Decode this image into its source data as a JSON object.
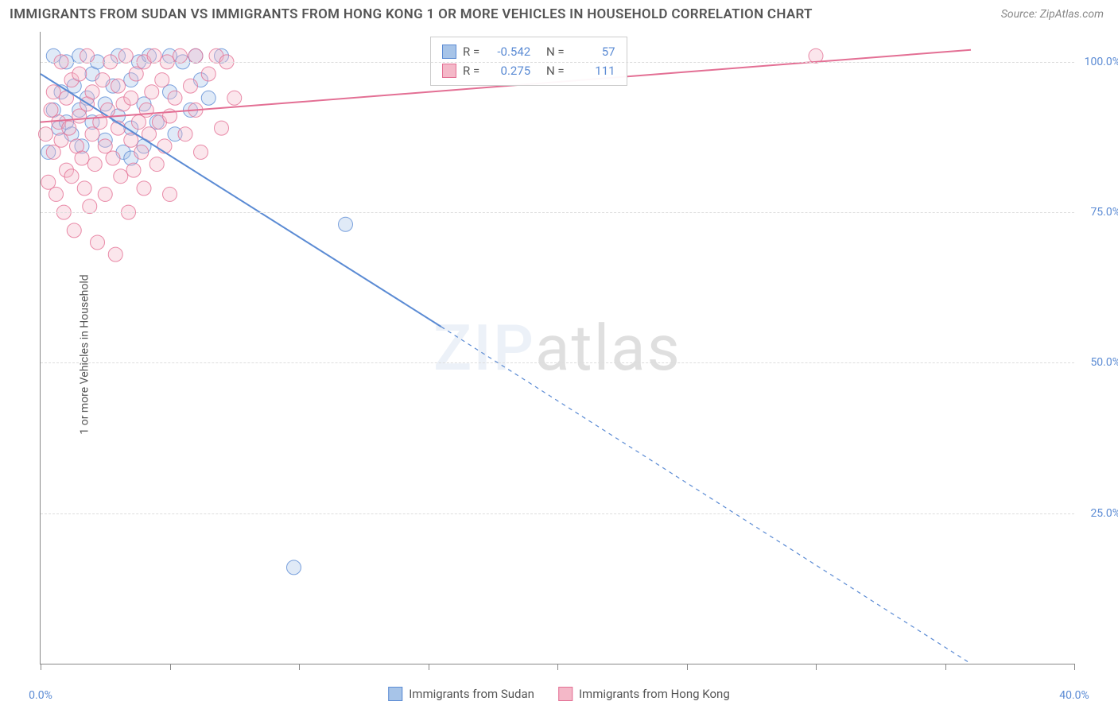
{
  "title": "IMMIGRANTS FROM SUDAN VS IMMIGRANTS FROM HONG KONG 1 OR MORE VEHICLES IN HOUSEHOLD CORRELATION CHART",
  "source": "Source: ZipAtlas.com",
  "ylabel": "1 or more Vehicles in Household",
  "watermark_a": "ZIP",
  "watermark_b": "atlas",
  "chart": {
    "type": "scatter",
    "xlim": [
      0,
      40
    ],
    "ylim": [
      0,
      105
    ],
    "x_tick_positions": [
      0,
      5,
      10,
      15,
      20,
      25,
      30,
      35,
      40
    ],
    "x_tick_labels": {
      "0": "0.0%",
      "40": "40.0%"
    },
    "y_gridlines": [
      25,
      50,
      75,
      100
    ],
    "y_tick_labels": {
      "25": "25.0%",
      "50": "50.0%",
      "75": "75.0%",
      "100": "100.0%"
    },
    "background_color": "#ffffff",
    "grid_color": "#dddddd",
    "axis_color": "#888888",
    "tick_label_color": "#5b8bd4",
    "marker_radius": 9,
    "marker_opacity": 0.35,
    "marker_stroke_opacity": 0.8,
    "line_width": 2,
    "dash_pattern": "5,5",
    "series": [
      {
        "name": "Immigrants from Sudan",
        "color_fill": "#a7c4e8",
        "color_stroke": "#5b8bd4",
        "R": "-0.542",
        "N": "57",
        "trend": {
          "x1": 0,
          "y1": 98,
          "x2_solid": 15.5,
          "y2_solid": 56,
          "x2": 36,
          "y2": 0
        },
        "points": [
          [
            0.3,
            85
          ],
          [
            0.5,
            92
          ],
          [
            0.5,
            101
          ],
          [
            0.7,
            89
          ],
          [
            0.8,
            95
          ],
          [
            1.0,
            100
          ],
          [
            1.0,
            90
          ],
          [
            1.2,
            88
          ],
          [
            1.3,
            96
          ],
          [
            1.5,
            92
          ],
          [
            1.5,
            101
          ],
          [
            1.6,
            86
          ],
          [
            1.8,
            94
          ],
          [
            2.0,
            98
          ],
          [
            2.0,
            90
          ],
          [
            2.2,
            100
          ],
          [
            2.5,
            93
          ],
          [
            2.5,
            87
          ],
          [
            2.8,
            96
          ],
          [
            3.0,
            101
          ],
          [
            3.0,
            91
          ],
          [
            3.2,
            85
          ],
          [
            3.5,
            89
          ],
          [
            3.5,
            97
          ],
          [
            3.8,
            100
          ],
          [
            4.0,
            93
          ],
          [
            4.0,
            86
          ],
          [
            4.2,
            101
          ],
          [
            4.5,
            90
          ],
          [
            5.0,
            95
          ],
          [
            5.0,
            101
          ],
          [
            5.2,
            88
          ],
          [
            5.5,
            100
          ],
          [
            5.8,
            92
          ],
          [
            6.0,
            101
          ],
          [
            6.2,
            97
          ],
          [
            6.5,
            94
          ],
          [
            7.0,
            101
          ],
          [
            11.8,
            73
          ],
          [
            9.8,
            16
          ],
          [
            3.5,
            84
          ]
        ]
      },
      {
        "name": "Immigrants from Hong Kong",
        "color_fill": "#f4b8c8",
        "color_stroke": "#e36f94",
        "R": "0.275",
        "N": "111",
        "trend": {
          "x1": 0,
          "y1": 90,
          "x2_solid": 36,
          "y2_solid": 102,
          "x2": 36,
          "y2": 102
        },
        "points": [
          [
            0.2,
            88
          ],
          [
            0.3,
            80
          ],
          [
            0.4,
            92
          ],
          [
            0.5,
            85
          ],
          [
            0.5,
            95
          ],
          [
            0.6,
            78
          ],
          [
            0.7,
            90
          ],
          [
            0.8,
            100
          ],
          [
            0.8,
            87
          ],
          [
            0.9,
            75
          ],
          [
            1.0,
            94
          ],
          [
            1.0,
            82
          ],
          [
            1.1,
            89
          ],
          [
            1.2,
            97
          ],
          [
            1.2,
            81
          ],
          [
            1.3,
            72
          ],
          [
            1.4,
            86
          ],
          [
            1.5,
            91
          ],
          [
            1.5,
            98
          ],
          [
            1.6,
            84
          ],
          [
            1.7,
            79
          ],
          [
            1.8,
            93
          ],
          [
            1.8,
            101
          ],
          [
            1.9,
            76
          ],
          [
            2.0,
            88
          ],
          [
            2.0,
            95
          ],
          [
            2.1,
            83
          ],
          [
            2.2,
            70
          ],
          [
            2.3,
            90
          ],
          [
            2.4,
            97
          ],
          [
            2.5,
            86
          ],
          [
            2.5,
            78
          ],
          [
            2.6,
            92
          ],
          [
            2.7,
            100
          ],
          [
            2.8,
            84
          ],
          [
            2.9,
            68
          ],
          [
            3.0,
            89
          ],
          [
            3.0,
            96
          ],
          [
            3.1,
            81
          ],
          [
            3.2,
            93
          ],
          [
            3.3,
            101
          ],
          [
            3.4,
            75
          ],
          [
            3.5,
            87
          ],
          [
            3.5,
            94
          ],
          [
            3.6,
            82
          ],
          [
            3.7,
            98
          ],
          [
            3.8,
            90
          ],
          [
            3.9,
            85
          ],
          [
            4.0,
            100
          ],
          [
            4.0,
            79
          ],
          [
            4.1,
            92
          ],
          [
            4.2,
            88
          ],
          [
            4.3,
            95
          ],
          [
            4.4,
            101
          ],
          [
            4.5,
            83
          ],
          [
            4.6,
            90
          ],
          [
            4.7,
            97
          ],
          [
            4.8,
            86
          ],
          [
            4.9,
            100
          ],
          [
            5.0,
            91
          ],
          [
            5.0,
            78
          ],
          [
            5.2,
            94
          ],
          [
            5.4,
            101
          ],
          [
            5.6,
            88
          ],
          [
            5.8,
            96
          ],
          [
            6.0,
            92
          ],
          [
            6.0,
            101
          ],
          [
            6.2,
            85
          ],
          [
            6.5,
            98
          ],
          [
            6.8,
            101
          ],
          [
            7.0,
            89
          ],
          [
            7.2,
            100
          ],
          [
            7.5,
            94
          ],
          [
            30.0,
            101
          ]
        ]
      }
    ]
  },
  "corr_labels": {
    "R": "R =",
    "N": "N ="
  }
}
